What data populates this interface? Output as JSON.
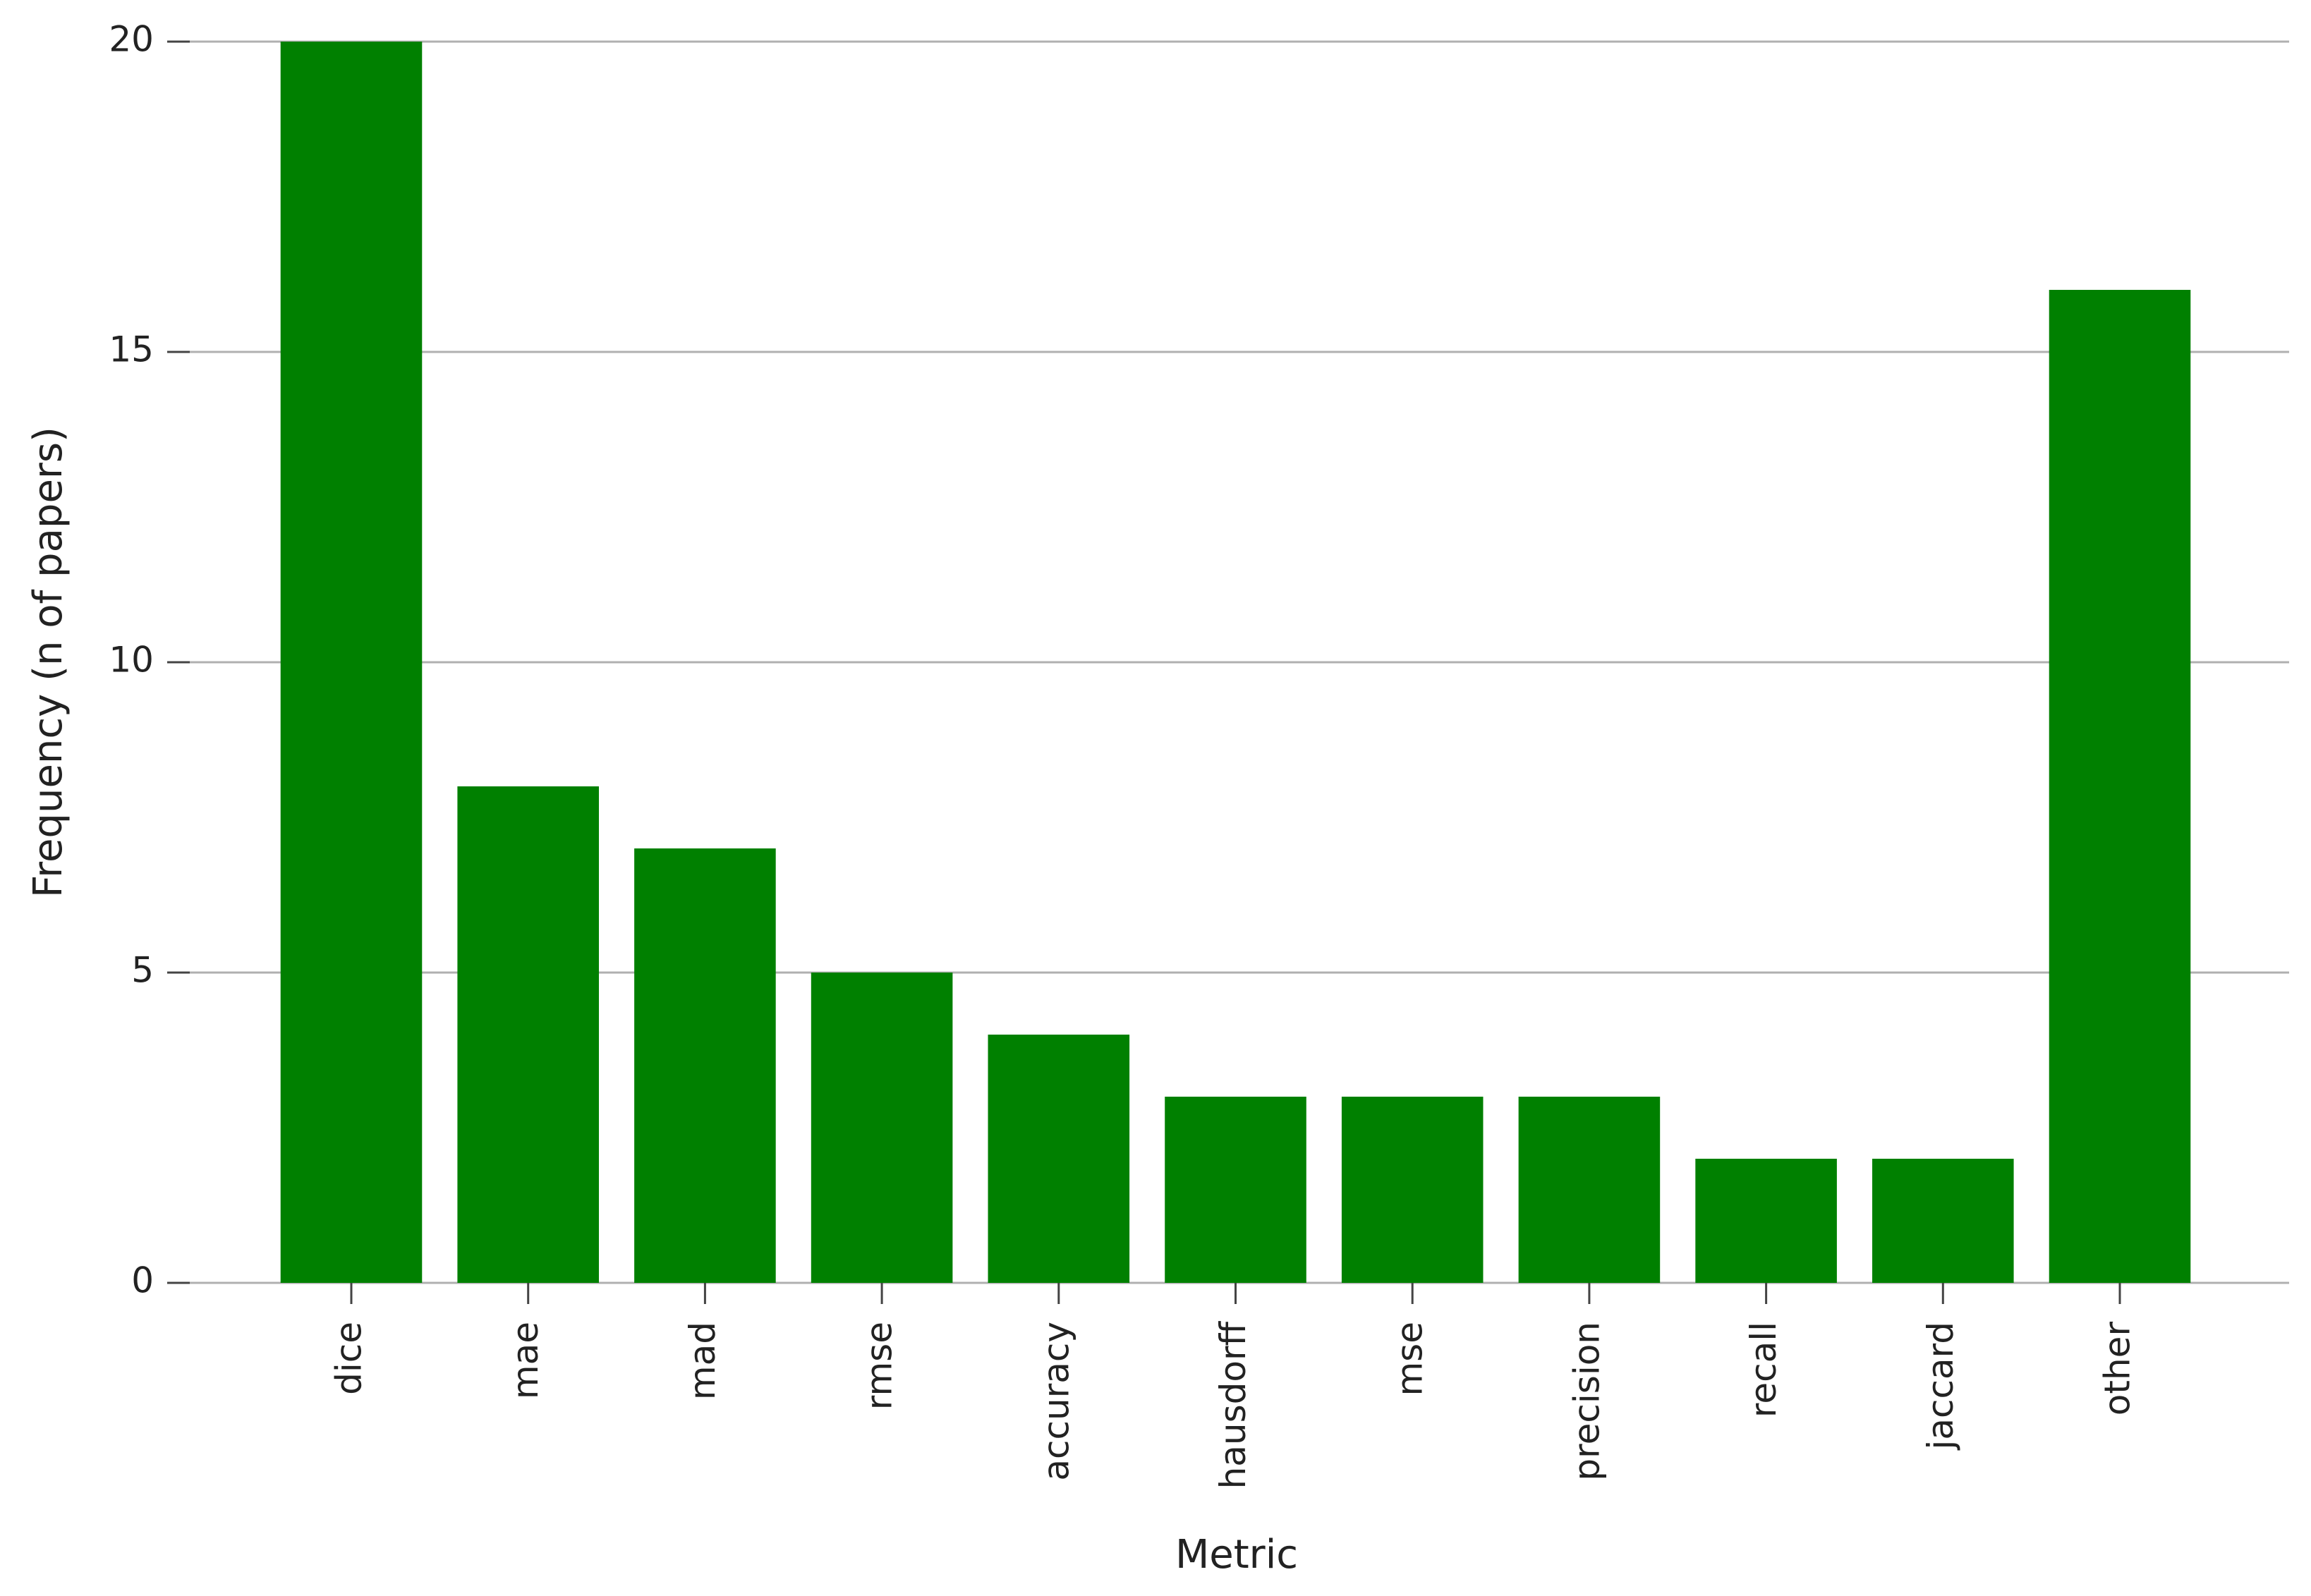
{
  "chart_data": {
    "type": "bar",
    "x_label": "Metric",
    "y_label": "Frequency (n of papers)",
    "categories": [
      "dice",
      "mae",
      "mad",
      "rmse",
      "accuracy",
      "hausdorff",
      "mse",
      "precision",
      "recall",
      "jaccard",
      "other"
    ],
    "values": [
      20,
      8,
      7,
      5,
      4,
      3,
      3,
      3,
      2,
      2,
      16
    ],
    "color": "#008000",
    "ylim": [
      0,
      20
    ],
    "yticks": [
      0,
      5,
      10,
      15,
      20
    ],
    "grid": true
  }
}
